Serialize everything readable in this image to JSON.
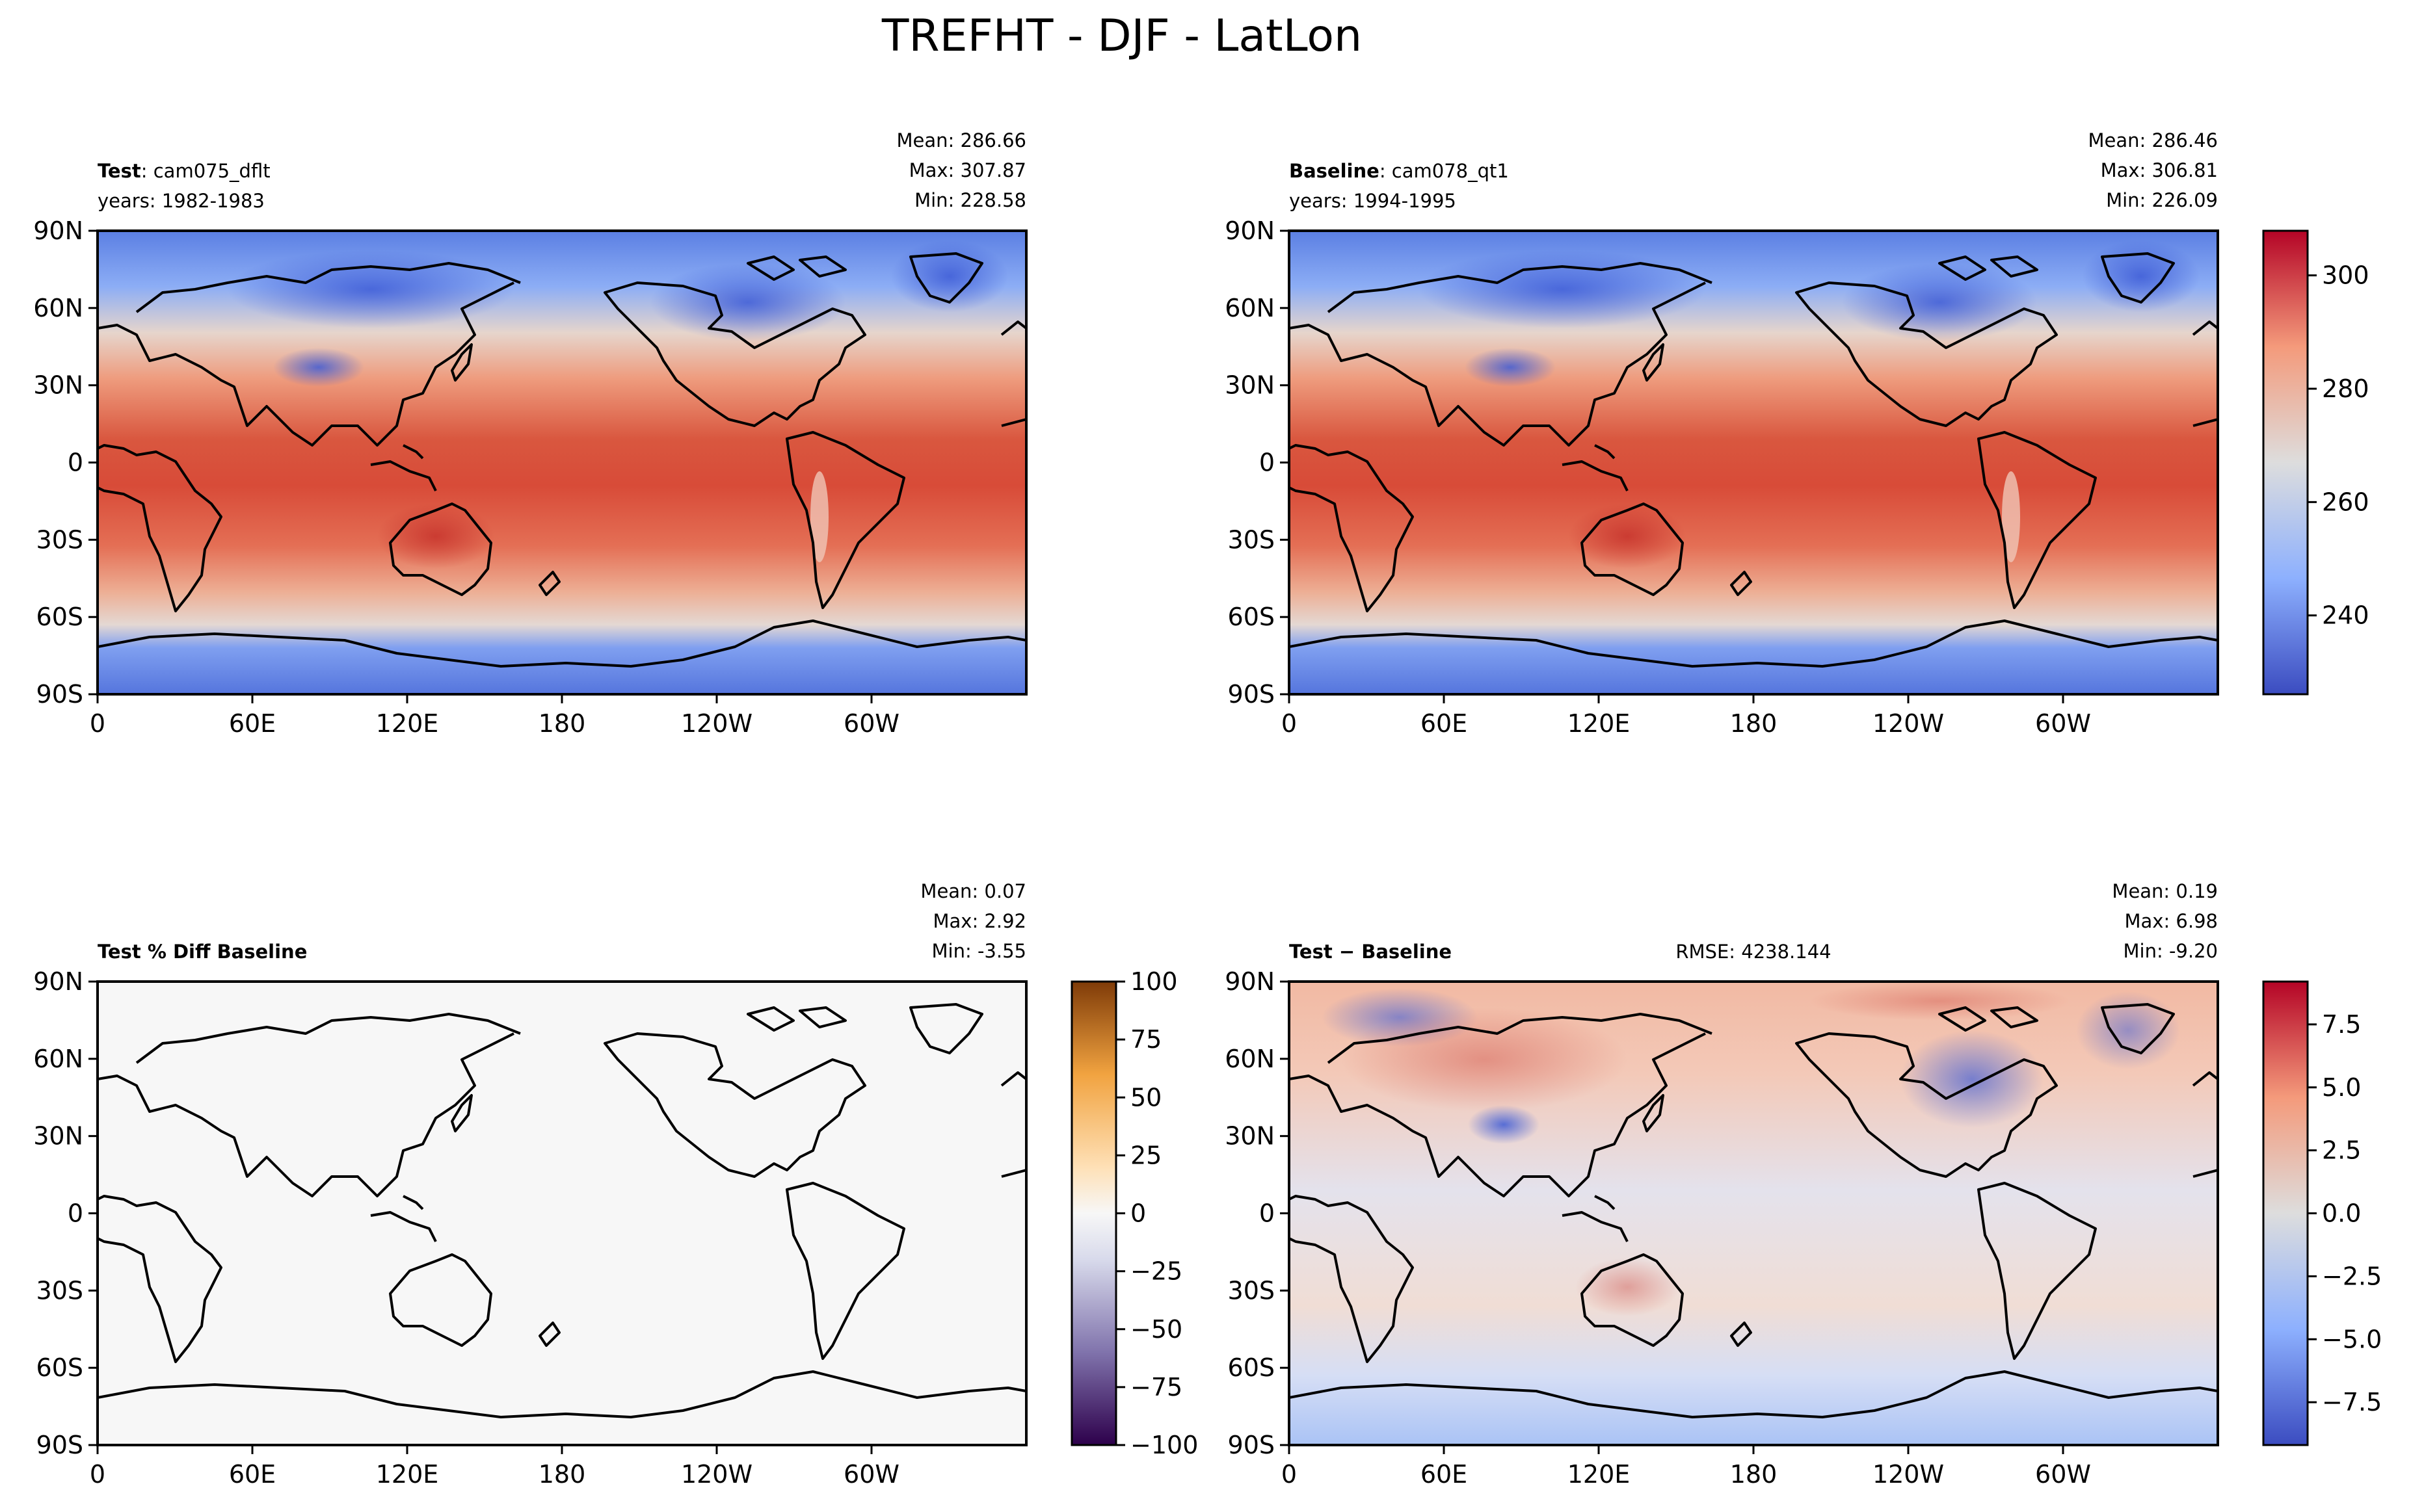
{
  "figure": {
    "title": "TREFHT - DJF - LatLon"
  },
  "chart_data": [
    {
      "type": "heatmap",
      "panel": "test",
      "label_bold": "Test",
      "label_rest": ": cam075_dflt",
      "years": "years: 1982-1983",
      "stats": [
        "Mean: 286.66",
        "Max: 307.87",
        "Min: 228.58"
      ],
      "x_ticks": [
        "0",
        "60E",
        "120E",
        "180",
        "120W",
        "60W"
      ],
      "y_ticks": [
        "90N",
        "60N",
        "30N",
        "0",
        "30S",
        "60S",
        "90S"
      ],
      "xlim": [
        0,
        360
      ],
      "ylim": [
        -90,
        90
      ],
      "colormap": "coolwarm"
    },
    {
      "type": "heatmap",
      "panel": "baseline",
      "label_bold": "Baseline",
      "label_rest": ": cam078_qt1",
      "years": "years: 1994-1995",
      "stats": [
        "Mean: 286.46",
        "Max: 306.81",
        "Min: 226.09"
      ],
      "x_ticks": [
        "0",
        "60E",
        "120E",
        "180",
        "120W",
        "60W"
      ],
      "y_ticks": [
        "90N",
        "60N",
        "30N",
        "0",
        "30S",
        "60S",
        "90S"
      ],
      "xlim": [
        0,
        360
      ],
      "ylim": [
        -90,
        90
      ],
      "colormap": "coolwarm",
      "colorbar": {
        "ticks": [
          "300",
          "280",
          "260",
          "240"
        ],
        "values": [
          300,
          280,
          260,
          240
        ],
        "range": [
          226.09,
          307.87
        ]
      }
    },
    {
      "type": "heatmap",
      "panel": "pct_diff",
      "label_bold": "Test % Diff Baseline",
      "stats": [
        "Mean:  0.07",
        "Max:  2.92",
        "Min: -3.55"
      ],
      "x_ticks": [
        "0",
        "60E",
        "120E",
        "180",
        "120W",
        "60W"
      ],
      "y_ticks": [
        "90N",
        "60N",
        "30N",
        "0",
        "30S",
        "60S",
        "90S"
      ],
      "xlim": [
        0,
        360
      ],
      "ylim": [
        -90,
        90
      ],
      "colormap": "PuOr_r",
      "colorbar": {
        "ticks": [
          "100",
          "75",
          "50",
          "25",
          "0",
          "−25",
          "−50",
          "−75",
          "−100"
        ],
        "values": [
          100,
          75,
          50,
          25,
          0,
          -25,
          -50,
          -75,
          -100
        ],
        "range": [
          -100,
          100
        ]
      }
    },
    {
      "type": "heatmap",
      "panel": "diff",
      "label_bold": "Test − Baseline",
      "rmse": "RMSE: 4238.144",
      "stats": [
        "Mean:  0.19",
        "Max:  6.98",
        "Min: -9.20"
      ],
      "x_ticks": [
        "0",
        "60E",
        "120E",
        "180",
        "120W",
        "60W"
      ],
      "y_ticks": [
        "90N",
        "60N",
        "30N",
        "0",
        "30S",
        "60S",
        "90S"
      ],
      "xlim": [
        0,
        360
      ],
      "ylim": [
        -90,
        90
      ],
      "colormap": "coolwarm",
      "colorbar": {
        "ticks": [
          "7.5",
          "5.0",
          "2.5",
          "0.0",
          "−2.5",
          "−5.0",
          "−7.5"
        ],
        "values": [
          7.5,
          5.0,
          2.5,
          0.0,
          -2.5,
          -5.0,
          -7.5
        ],
        "range": [
          -9.2,
          9.2
        ]
      }
    }
  ],
  "colors": {
    "warm": "#d2402f",
    "warm_light": "#ef8c6b",
    "neutral": "#dddddd",
    "cool_light": "#9fbdf4",
    "cool": "#4a6fe0",
    "orange": "#b35806",
    "purple": "#2d004b",
    "white": "#f7f7f7"
  }
}
